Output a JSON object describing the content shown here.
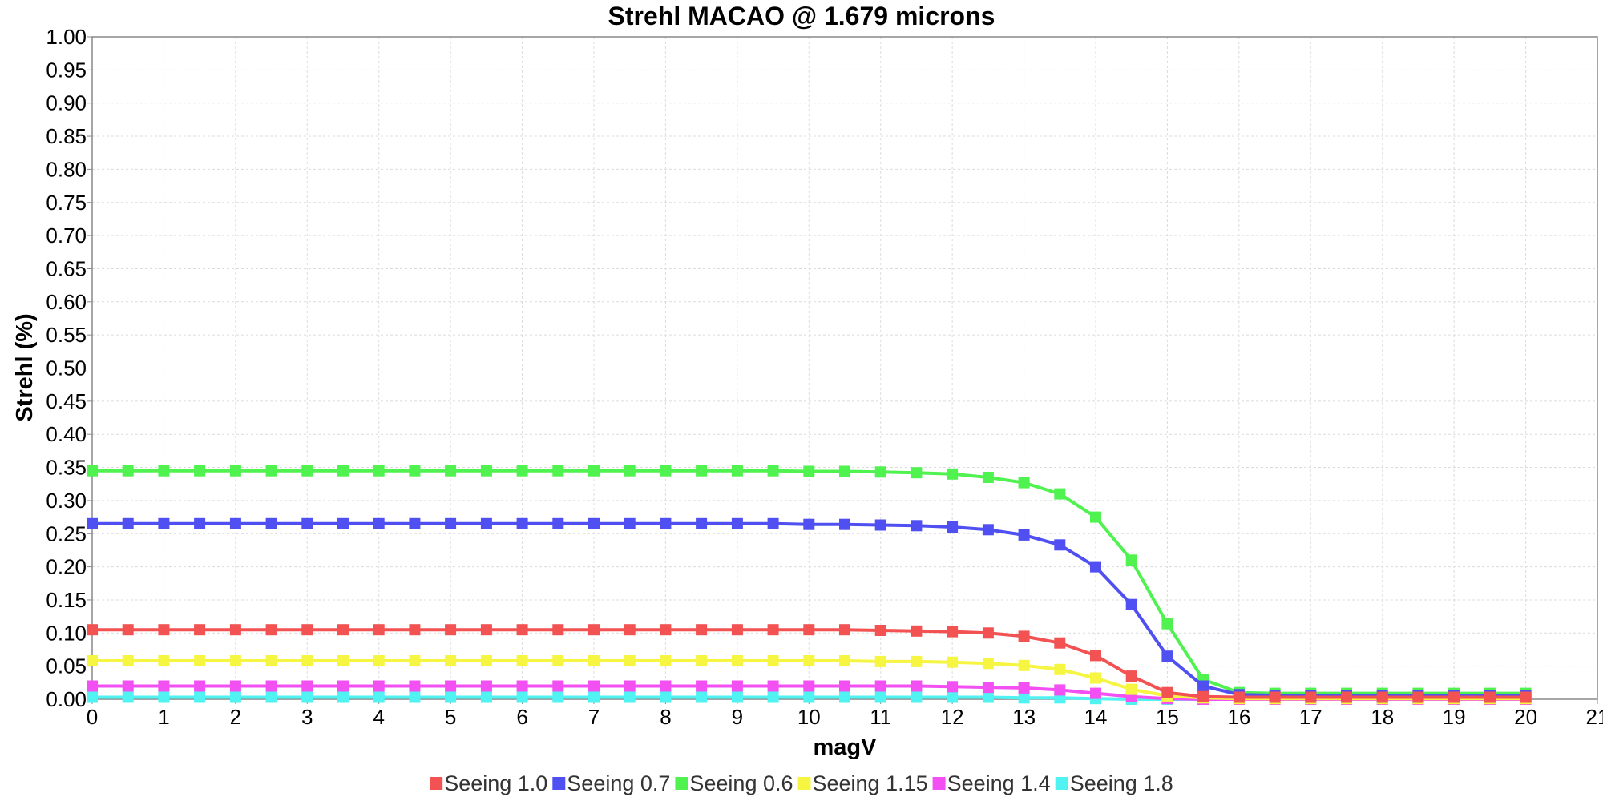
{
  "chart_data": {
    "type": "line",
    "title": "Strehl MACAO @ 1.679 microns",
    "xlabel": "magV",
    "ylabel": "Strehl (%)",
    "xlim": [
      0,
      21
    ],
    "ylim": [
      0,
      1.0
    ],
    "x_ticks": [
      "0",
      "1",
      "2",
      "3",
      "4",
      "5",
      "6",
      "7",
      "8",
      "9",
      "10",
      "11",
      "12",
      "13",
      "14",
      "15",
      "16",
      "17",
      "18",
      "19",
      "20",
      "21"
    ],
    "y_ticks": [
      "0.00",
      "0.05",
      "0.10",
      "0.15",
      "0.20",
      "0.25",
      "0.30",
      "0.35",
      "0.40",
      "0.45",
      "0.50",
      "0.55",
      "0.60",
      "0.65",
      "0.70",
      "0.75",
      "0.80",
      "0.85",
      "0.90",
      "0.95",
      "1.00"
    ],
    "grid": true,
    "legend_position": "bottom",
    "x": [
      0,
      0.5,
      1,
      1.5,
      2,
      2.5,
      3,
      3.5,
      4,
      4.5,
      5,
      5.5,
      6,
      6.5,
      7,
      7.5,
      8,
      8.5,
      9,
      9.5,
      10,
      10.5,
      11,
      11.5,
      12,
      12.5,
      13,
      13.5,
      14,
      14.5,
      15,
      15.5,
      16,
      16.5,
      17,
      17.5,
      18,
      18.5,
      19,
      19.5,
      20
    ],
    "series": [
      {
        "name": "Seeing 1.0",
        "color": "#f25252",
        "values": [
          0.105,
          0.105,
          0.105,
          0.105,
          0.105,
          0.105,
          0.105,
          0.105,
          0.105,
          0.105,
          0.105,
          0.105,
          0.105,
          0.105,
          0.105,
          0.105,
          0.105,
          0.105,
          0.105,
          0.105,
          0.105,
          0.105,
          0.104,
          0.103,
          0.102,
          0.1,
          0.095,
          0.085,
          0.066,
          0.035,
          0.01,
          0.004,
          0.003,
          0.003,
          0.003,
          0.003,
          0.003,
          0.003,
          0.003,
          0.003,
          0.003
        ]
      },
      {
        "name": "Seeing 0.7",
        "color": "#5050f2",
        "values": [
          0.265,
          0.265,
          0.265,
          0.265,
          0.265,
          0.265,
          0.265,
          0.265,
          0.265,
          0.265,
          0.265,
          0.265,
          0.265,
          0.265,
          0.265,
          0.265,
          0.265,
          0.265,
          0.265,
          0.265,
          0.264,
          0.264,
          0.263,
          0.262,
          0.26,
          0.256,
          0.248,
          0.233,
          0.2,
          0.143,
          0.065,
          0.02,
          0.007,
          0.006,
          0.006,
          0.006,
          0.006,
          0.006,
          0.006,
          0.006,
          0.006
        ]
      },
      {
        "name": "Seeing 0.6",
        "color": "#50f250",
        "values": [
          0.345,
          0.345,
          0.345,
          0.345,
          0.345,
          0.345,
          0.345,
          0.345,
          0.345,
          0.345,
          0.345,
          0.345,
          0.345,
          0.345,
          0.345,
          0.345,
          0.345,
          0.345,
          0.345,
          0.345,
          0.344,
          0.344,
          0.343,
          0.342,
          0.34,
          0.335,
          0.327,
          0.31,
          0.275,
          0.21,
          0.114,
          0.03,
          0.01,
          0.009,
          0.009,
          0.009,
          0.009,
          0.009,
          0.009,
          0.009,
          0.009
        ]
      },
      {
        "name": "Seeing 1.15",
        "color": "#f5f542",
        "values": [
          0.058,
          0.058,
          0.058,
          0.058,
          0.058,
          0.058,
          0.058,
          0.058,
          0.058,
          0.058,
          0.058,
          0.058,
          0.058,
          0.058,
          0.058,
          0.058,
          0.058,
          0.058,
          0.058,
          0.058,
          0.058,
          0.058,
          0.057,
          0.057,
          0.056,
          0.054,
          0.051,
          0.045,
          0.032,
          0.015,
          0.005,
          0.002,
          0.001,
          0.001,
          0.001,
          0.001,
          0.001,
          0.001,
          0.001,
          0.001,
          0.001
        ]
      },
      {
        "name": "Seeing 1.4",
        "color": "#f250f2",
        "values": [
          0.02,
          0.02,
          0.02,
          0.02,
          0.02,
          0.02,
          0.02,
          0.02,
          0.02,
          0.02,
          0.02,
          0.02,
          0.02,
          0.02,
          0.02,
          0.02,
          0.02,
          0.02,
          0.02,
          0.02,
          0.02,
          0.02,
          0.02,
          0.02,
          0.019,
          0.018,
          0.017,
          0.014,
          0.009,
          0.004,
          0.001,
          0.0,
          0.0,
          0.0,
          0.0,
          0.0,
          0.0,
          0.0,
          0.0,
          0.0,
          0.0
        ]
      },
      {
        "name": "Seeing 1.8",
        "color": "#50f2f2",
        "values": [
          0.003,
          0.003,
          0.003,
          0.003,
          0.003,
          0.003,
          0.003,
          0.003,
          0.003,
          0.003,
          0.003,
          0.003,
          0.003,
          0.003,
          0.003,
          0.003,
          0.003,
          0.003,
          0.003,
          0.003,
          0.003,
          0.003,
          0.003,
          0.003,
          0.003,
          0.003,
          0.002,
          0.002,
          0.001,
          0.0,
          0.0,
          0.0,
          0.0,
          0.0,
          0.0,
          0.0,
          0.0,
          0.0,
          0.0,
          0.0,
          0.0
        ]
      }
    ]
  }
}
